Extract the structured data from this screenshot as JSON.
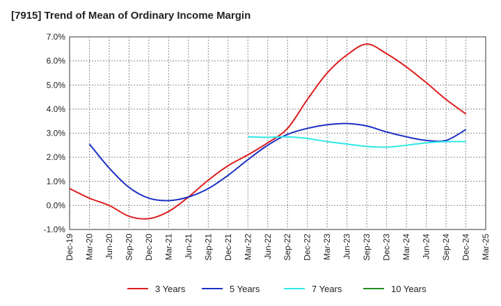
{
  "chart_data": {
    "type": "line",
    "title": "[7915]  Trend of Mean of Ordinary Income Margin",
    "x_ticks": [
      "Dec-19",
      "Mar-20",
      "Jun-20",
      "Sep-20",
      "Dec-20",
      "Mar-21",
      "Jun-21",
      "Sep-21",
      "Dec-21",
      "Mar-22",
      "Jun-22",
      "Sep-22",
      "Dec-22",
      "Mar-23",
      "Jun-23",
      "Sep-23",
      "Dec-23",
      "Mar-24",
      "Jun-24",
      "Sep-24",
      "Dec-24",
      "Mar-25"
    ],
    "y_ticks": [
      "7.0%",
      "6.0%",
      "5.0%",
      "4.0%",
      "3.0%",
      "2.0%",
      "1.0%",
      "0.0%",
      "-1.0%"
    ],
    "ylim": [
      -1.0,
      7.0
    ],
    "grid": true,
    "legend_position": "bottom",
    "series": [
      {
        "name": "3 Years",
        "color": "#dd1c1c",
        "x": [
          "Dec-19",
          "Mar-20",
          "Jun-20",
          "Sep-20",
          "Dec-20",
          "Mar-21",
          "Jun-21",
          "Sep-21",
          "Dec-21",
          "Mar-22",
          "Jun-22",
          "Sep-22",
          "Dec-22",
          "Mar-23",
          "Jun-23",
          "Sep-23",
          "Dec-23",
          "Mar-24",
          "Jun-24",
          "Sep-24",
          "Dec-24"
        ],
        "values": [
          0.7,
          0.3,
          0.0,
          -0.45,
          -0.55,
          -0.25,
          0.35,
          1.05,
          1.65,
          2.1,
          2.6,
          3.2,
          4.4,
          5.5,
          6.25,
          6.7,
          6.3,
          5.75,
          5.1,
          4.4,
          3.8
        ]
      },
      {
        "name": "5 Years",
        "color": "#1a2fc4",
        "x": [
          "Mar-20",
          "Jun-20",
          "Sep-20",
          "Dec-20",
          "Mar-21",
          "Jun-21",
          "Sep-21",
          "Dec-21",
          "Mar-22",
          "Jun-22",
          "Sep-22",
          "Dec-22",
          "Mar-23",
          "Jun-23",
          "Sep-23",
          "Dec-23",
          "Mar-24",
          "Jun-24",
          "Sep-24",
          "Dec-24"
        ],
        "values": [
          2.55,
          1.55,
          0.75,
          0.3,
          0.2,
          0.35,
          0.7,
          1.25,
          1.9,
          2.5,
          2.95,
          3.2,
          3.35,
          3.4,
          3.3,
          3.05,
          2.85,
          2.7,
          2.7,
          3.15
        ]
      },
      {
        "name": "7 Years",
        "color": "#2ee8e8",
        "x": [
          "Mar-22",
          "Jun-22",
          "Sep-22",
          "Dec-22",
          "Mar-23",
          "Jun-23",
          "Sep-23",
          "Dec-23",
          "Mar-24",
          "Jun-24",
          "Sep-24",
          "Dec-24"
        ],
        "values": [
          2.85,
          2.83,
          2.85,
          2.78,
          2.65,
          2.55,
          2.45,
          2.42,
          2.5,
          2.6,
          2.65,
          2.65
        ]
      },
      {
        "name": "10 Years",
        "color": "#1e8c1e",
        "x": [],
        "values": []
      }
    ]
  }
}
